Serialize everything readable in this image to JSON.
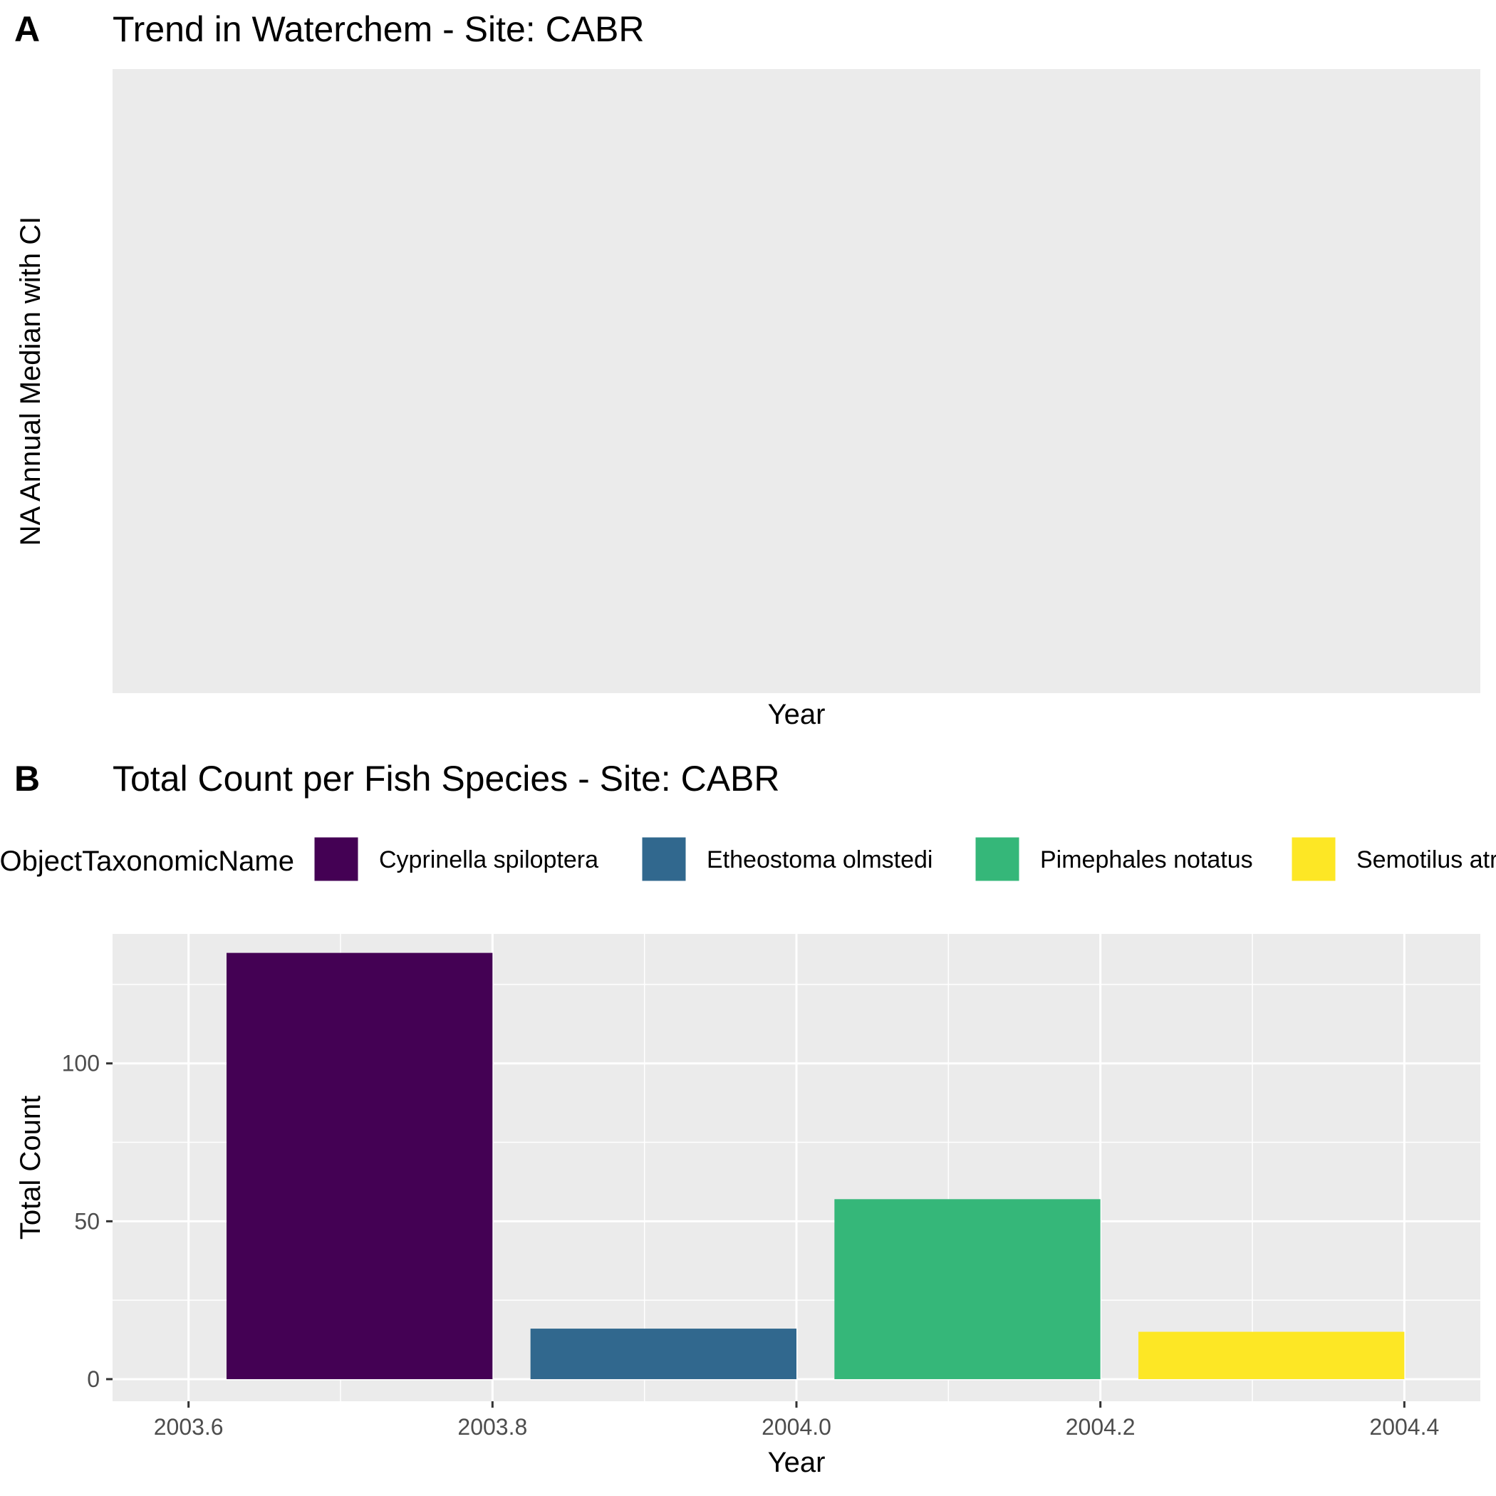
{
  "panels": {
    "a": {
      "tag": "A",
      "title": "Trend in Waterchem - Site: CABR",
      "ylabel": "NA Annual Median with CI",
      "xlabel": "Year"
    },
    "b": {
      "tag": "B",
      "title": "Total Count per Fish Species - Site: CABR",
      "ylabel": "Total Count",
      "xlabel": "Year",
      "legend_title": "ObjectTaxonomicName"
    }
  },
  "chart_data": [
    {
      "type": "line",
      "title": "Trend in Waterchem - Site: CABR",
      "xlabel": "Year",
      "ylabel": "NA Annual Median with CI",
      "series": [],
      "grid": false,
      "panel_background": "#EBEBEB"
    },
    {
      "type": "bar",
      "title": "Total Count per Fish Species - Site: CABR",
      "xlabel": "Year",
      "ylabel": "Total Count",
      "legend_title": "ObjectTaxonomicName",
      "legend_position": "top",
      "grid": true,
      "xlim": [
        2003.55,
        2004.45
      ],
      "ylim": [
        -7,
        141
      ],
      "x_ticks": [
        2003.6,
        2003.8,
        2004.0,
        2004.2,
        2004.4
      ],
      "x_tick_labels": [
        "2003.6",
        "2003.8",
        "2004.0",
        "2004.2",
        "2004.4"
      ],
      "y_ticks": [
        0,
        50,
        100
      ],
      "y_tick_labels": [
        "0",
        "50",
        "100"
      ],
      "series": [
        {
          "name": "Cyprinella spiloptera",
          "color": "#440154",
          "x_start": 2003.625,
          "x_end": 2003.8,
          "value": 135
        },
        {
          "name": "Etheostoma olmstedi",
          "color": "#31688E",
          "x_start": 2003.825,
          "x_end": 2004.0,
          "value": 16
        },
        {
          "name": "Pimephales notatus",
          "color": "#35B779",
          "x_start": 2004.025,
          "x_end": 2004.2,
          "value": 57
        },
        {
          "name": "Semotilus atromaculatus",
          "color": "#FDE725",
          "x_start": 2004.225,
          "x_end": 2004.4,
          "value": 15
        }
      ]
    }
  ]
}
